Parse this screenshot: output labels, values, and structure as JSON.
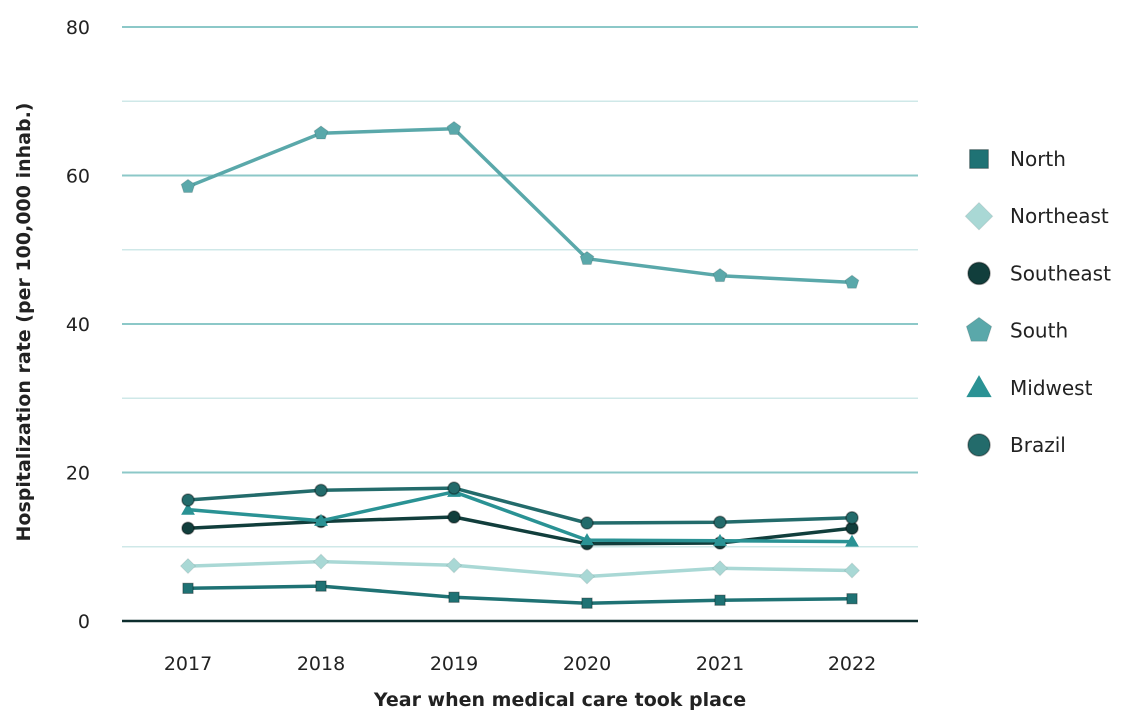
{
  "chart_data": {
    "type": "line",
    "xlabel": "Year when medical care took place",
    "ylabel": "Hospitalization rate (per 100,000 inhab.)",
    "ylim": [
      0,
      80
    ],
    "yticks": [
      0,
      20,
      40,
      60,
      80
    ],
    "categories": [
      "2017",
      "2018",
      "2019",
      "2020",
      "2021",
      "2022"
    ],
    "grid": true,
    "legend_position": "right",
    "series": [
      {
        "name": "North",
        "marker": "square",
        "color": "#1f7274",
        "values": [
          4.4,
          4.7,
          3.2,
          2.4,
          2.8,
          3.0
        ]
      },
      {
        "name": "Northeast",
        "marker": "diamond",
        "color": "#a9d8d5",
        "values": [
          7.4,
          8.0,
          7.5,
          6.0,
          7.1,
          6.8
        ]
      },
      {
        "name": "Southeast",
        "marker": "circle",
        "color": "#113e3c",
        "values": [
          12.5,
          13.4,
          14.0,
          10.4,
          10.5,
          12.5
        ]
      },
      {
        "name": "South",
        "marker": "pentagon",
        "color": "#5aa8aa",
        "values": [
          58.5,
          65.7,
          66.3,
          48.8,
          46.5,
          45.6
        ]
      },
      {
        "name": "Midwest",
        "marker": "triangle",
        "color": "#2a9294",
        "values": [
          15.0,
          13.5,
          17.4,
          10.9,
          10.8,
          10.7
        ]
      },
      {
        "name": "Brazil",
        "marker": "circle",
        "color": "#236b6b",
        "values": [
          16.3,
          17.6,
          17.9,
          13.2,
          13.3,
          13.9
        ]
      }
    ]
  }
}
